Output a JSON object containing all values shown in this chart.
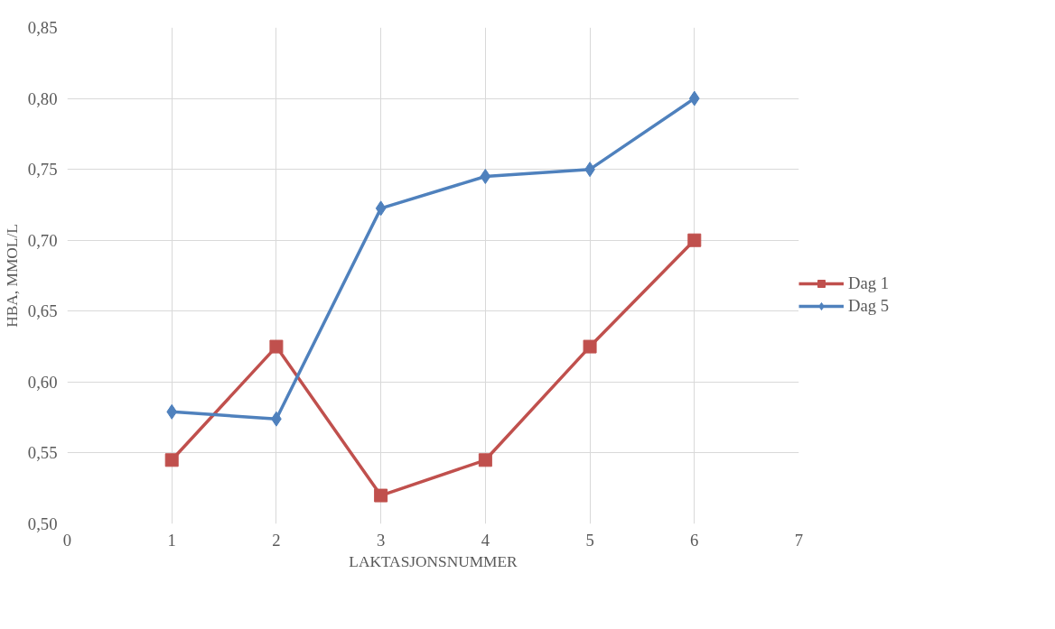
{
  "chart_data": {
    "type": "line",
    "xlabel": "LAKTASJONSNUMMER",
    "ylabel": "HBA, MMOL/L",
    "x": [
      1,
      2,
      3,
      4,
      5,
      6
    ],
    "series": [
      {
        "name": "Dag 1",
        "color": "#c0504d",
        "marker": "square",
        "values": [
          0.545,
          0.625,
          0.52,
          0.545,
          0.625,
          0.7
        ]
      },
      {
        "name": "Dag 5",
        "color": "#4f81bd",
        "marker": "diamond",
        "values": [
          0.579,
          0.574,
          0.7225,
          0.745,
          0.75,
          0.8
        ]
      }
    ],
    "xlim": [
      0,
      7
    ],
    "xticks": [
      0,
      1,
      2,
      3,
      4,
      5,
      6,
      7
    ],
    "ylim": [
      0.5,
      0.85
    ],
    "yticks": [
      {
        "value": 0.5,
        "label": "0,50"
      },
      {
        "value": 0.55,
        "label": "0,55"
      },
      {
        "value": 0.6,
        "label": "0,60"
      },
      {
        "value": 0.65,
        "label": "0,65"
      },
      {
        "value": 0.7,
        "label": "0,70"
      },
      {
        "value": 0.75,
        "label": "0,75"
      },
      {
        "value": 0.8,
        "label": "0,80"
      },
      {
        "value": 0.85,
        "label": "0,85"
      }
    ],
    "grid": true,
    "legend": "right",
    "line_style": "solid"
  }
}
